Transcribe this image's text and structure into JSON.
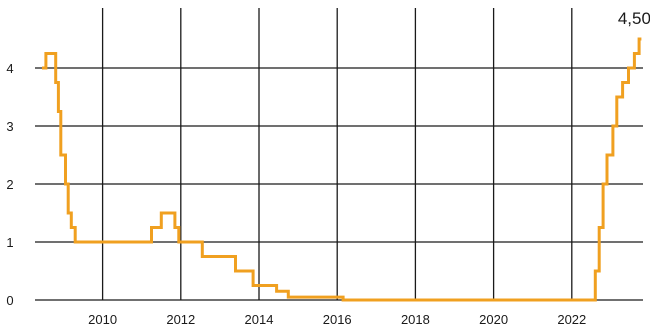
{
  "chart_data": {
    "type": "line",
    "step": true,
    "title": "",
    "xlabel": "",
    "ylabel": "",
    "x_ticks": [
      "2010",
      "2012",
      "2014",
      "2016",
      "2018",
      "2020",
      "2022"
    ],
    "y_ticks": [
      "0",
      "1",
      "2",
      "3",
      "4"
    ],
    "xlim": [
      2008.4,
      2024.3
    ],
    "ylim": [
      0,
      4.5
    ],
    "grid": true,
    "end_label": "4,50",
    "colors": {
      "series": "#f0a020",
      "grid": "#1a1a1a"
    },
    "series": [
      {
        "points": [
          [
            2008.45,
            4.0
          ],
          [
            2008.55,
            4.25
          ],
          [
            2008.8,
            3.75
          ],
          [
            2008.87,
            3.25
          ],
          [
            2008.93,
            2.5
          ],
          [
            2009.05,
            2.0
          ],
          [
            2009.12,
            1.5
          ],
          [
            2009.2,
            1.25
          ],
          [
            2009.3,
            1.0
          ],
          [
            2011.25,
            1.25
          ],
          [
            2011.5,
            1.5
          ],
          [
            2011.85,
            1.25
          ],
          [
            2011.95,
            1.0
          ],
          [
            2012.55,
            0.75
          ],
          [
            2013.4,
            0.5
          ],
          [
            2013.85,
            0.25
          ],
          [
            2014.45,
            0.15
          ],
          [
            2014.75,
            0.05
          ],
          [
            2016.15,
            0.0
          ],
          [
            2022.5,
            0.0
          ],
          [
            2022.6,
            0.5
          ],
          [
            2022.7,
            1.25
          ],
          [
            2022.8,
            2.0
          ],
          [
            2022.9,
            2.5
          ],
          [
            2023.05,
            3.0
          ],
          [
            2023.15,
            3.5
          ],
          [
            2023.3,
            3.75
          ],
          [
            2023.45,
            4.0
          ],
          [
            2023.6,
            4.25
          ],
          [
            2023.72,
            4.5
          ],
          [
            2023.78,
            4.5
          ]
        ]
      }
    ]
  }
}
